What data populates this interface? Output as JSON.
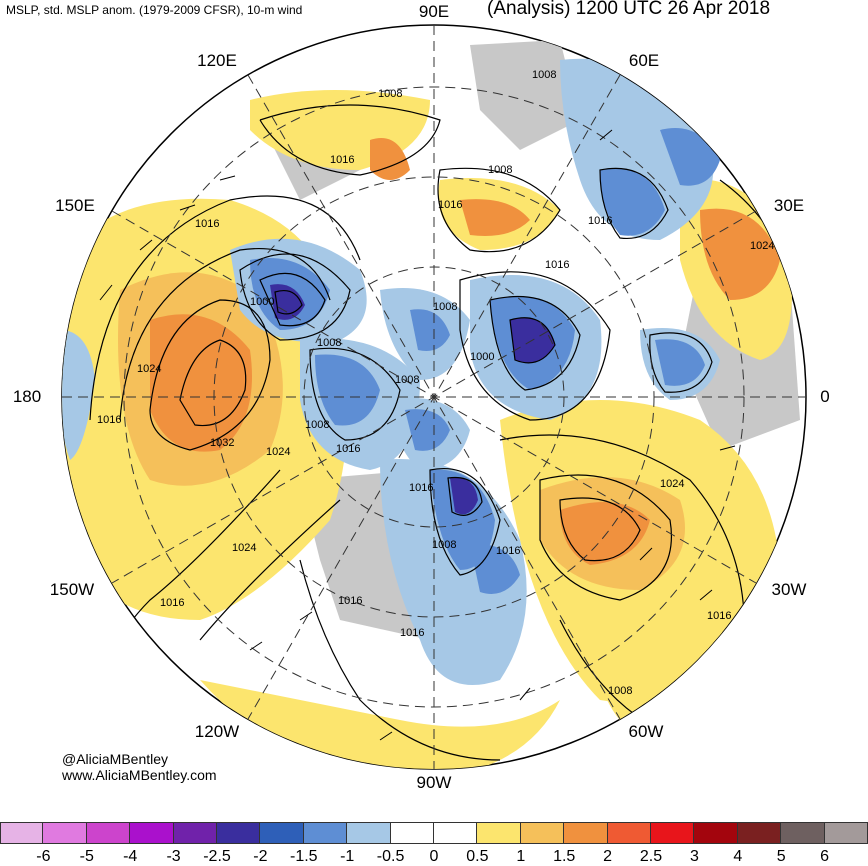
{
  "header": {
    "left_title": "MSLP, std. MSLP anom. (1979-2009 CFSR), 10-m wind",
    "right_title": "(Analysis) 1200 UTC 26 Apr 2018"
  },
  "credits": {
    "handle": "@AliciaMBentley",
    "website": "www.AliciaMBentley.com"
  },
  "longitude_labels": [
    {
      "key": "90E",
      "text": "90E"
    },
    {
      "key": "60E",
      "text": "60E"
    },
    {
      "key": "30E",
      "text": "30E"
    },
    {
      "key": "0",
      "text": "0"
    },
    {
      "key": "30W",
      "text": "30W"
    },
    {
      "key": "60W",
      "text": "60W"
    },
    {
      "key": "90W",
      "text": "90W"
    },
    {
      "key": "120W",
      "text": "120W"
    },
    {
      "key": "150W",
      "text": "150W"
    },
    {
      "key": "180",
      "text": "180"
    },
    {
      "key": "150E",
      "text": "150E"
    },
    {
      "key": "120E",
      "text": "120E"
    }
  ],
  "isobar_labels": [
    "1008",
    "1008",
    "1008",
    "1016",
    "1016",
    "1016",
    "1016",
    "1000",
    "1008",
    "1008",
    "1024",
    "1016",
    "1032",
    "1024",
    "1008",
    "1016",
    "1000",
    "1008",
    "1024",
    "1016",
    "1024",
    "1016",
    "1016",
    "1008",
    "1016",
    "1016",
    "1024",
    "1016",
    "1016",
    "1008"
  ],
  "colorbar": {
    "colors": [
      "#e6b3e6",
      "#e07ae0",
      "#cc44cc",
      "#aa11cc",
      "#7022aa",
      "#3a2e9e",
      "#2e5fb8",
      "#5e8ed4",
      "#a6c8e6",
      "#ffffff",
      "#ffffff",
      "#fce56e",
      "#f5c05a",
      "#f0913e",
      "#ef5a33",
      "#e8151b",
      "#a3050d",
      "#7a2020",
      "#6e6060",
      "#a39a9a"
    ],
    "tick_labels": [
      "-6",
      "-5",
      "-4",
      "-3",
      "-2.5",
      "-2",
      "-1.5",
      "-1",
      "-0.5",
      "0",
      "0.5",
      "1",
      "1.5",
      "2",
      "2.5",
      "3",
      "4",
      "5",
      "6"
    ]
  },
  "anomaly_colors": {
    "strong_negative": "#3a2e9e",
    "negative": "#5e8ed4",
    "weak_negative": "#a6c8e6",
    "weak_positive": "#fce56e",
    "positive": "#f5c05a",
    "strong_positive": "#f0913e",
    "land": "#c8c8c8"
  }
}
